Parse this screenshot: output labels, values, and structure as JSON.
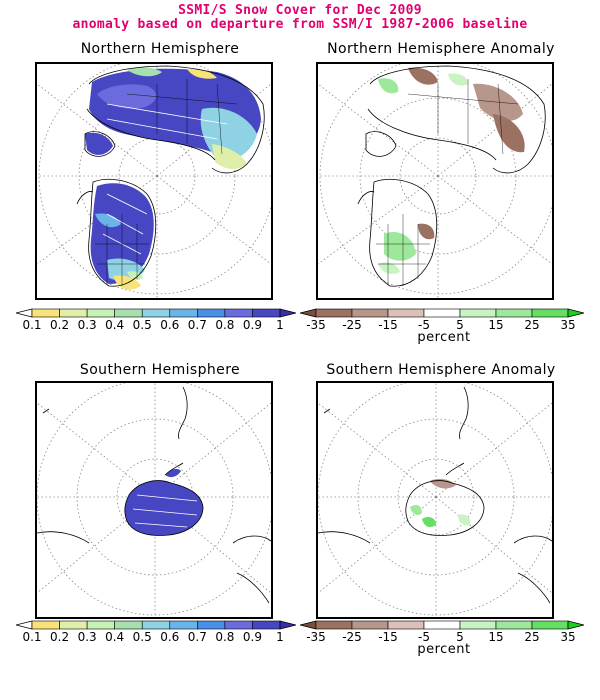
{
  "header": {
    "title": "SSMI/S Snow Cover for Dec 2009",
    "subtitle": "anomaly based on departure from SSM/I 1987-2006 baseline"
  },
  "panels": [
    {
      "id": "nh",
      "title": "Northern Hemisphere"
    },
    {
      "id": "nha",
      "title": "Northern Hemisphere Anomaly"
    },
    {
      "id": "sh",
      "title": "Southern Hemisphere"
    },
    {
      "id": "sha",
      "title": "Southern Hemisphere Anomaly"
    }
  ],
  "colorbars": {
    "cover": {
      "ticks": [
        "0.1",
        "0.2",
        "0.3",
        "0.4",
        "0.5",
        "0.6",
        "0.7",
        "0.8",
        "0.9",
        "1"
      ],
      "colors": [
        "#ffffff",
        "#f8e27a",
        "#dfefa9",
        "#c7f2b6",
        "#a6e1ad",
        "#8fd2e4",
        "#6bb4e9",
        "#4a8ee6",
        "#6c6bde",
        "#4747c3",
        "#3a2fa7"
      ]
    },
    "anomaly": {
      "ticks": [
        "-35",
        "-25",
        "-15",
        "-5",
        "5",
        "15",
        "25",
        "35"
      ],
      "unit": "percent",
      "colors": [
        "#7a4e3c",
        "#9b7262",
        "#b7978b",
        "#dbc1b8",
        "#ffffff",
        "#c8f3c2",
        "#9de89a",
        "#64df63",
        "#1fcf1f"
      ]
    }
  }
}
